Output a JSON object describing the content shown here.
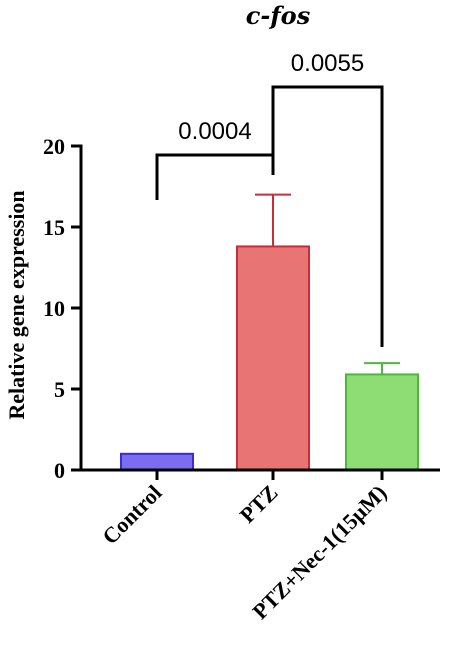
{
  "chart_data": {
    "type": "bar",
    "title": "c-fos",
    "ylabel": "Relative gene expression",
    "xlabel": "",
    "ylim": [
      0,
      20
    ],
    "yticks": [
      0,
      5,
      10,
      15,
      20
    ],
    "categories": [
      "Control",
      "PTZ",
      "PTZ+Nec-1(15μM)"
    ],
    "values": [
      1.0,
      13.8,
      5.9
    ],
    "errors": [
      0.0,
      3.2,
      0.7
    ],
    "colors": {
      "fill": [
        "#7b6cf0",
        "#e97474",
        "#8ddd74"
      ],
      "stroke": [
        "#3b2bd1",
        "#c52e3a",
        "#4bb83a"
      ]
    },
    "comparisons": [
      {
        "from": 0,
        "to": 1,
        "label": "0.0004"
      },
      {
        "from": 1,
        "to": 2,
        "label": "0.0055"
      }
    ]
  }
}
